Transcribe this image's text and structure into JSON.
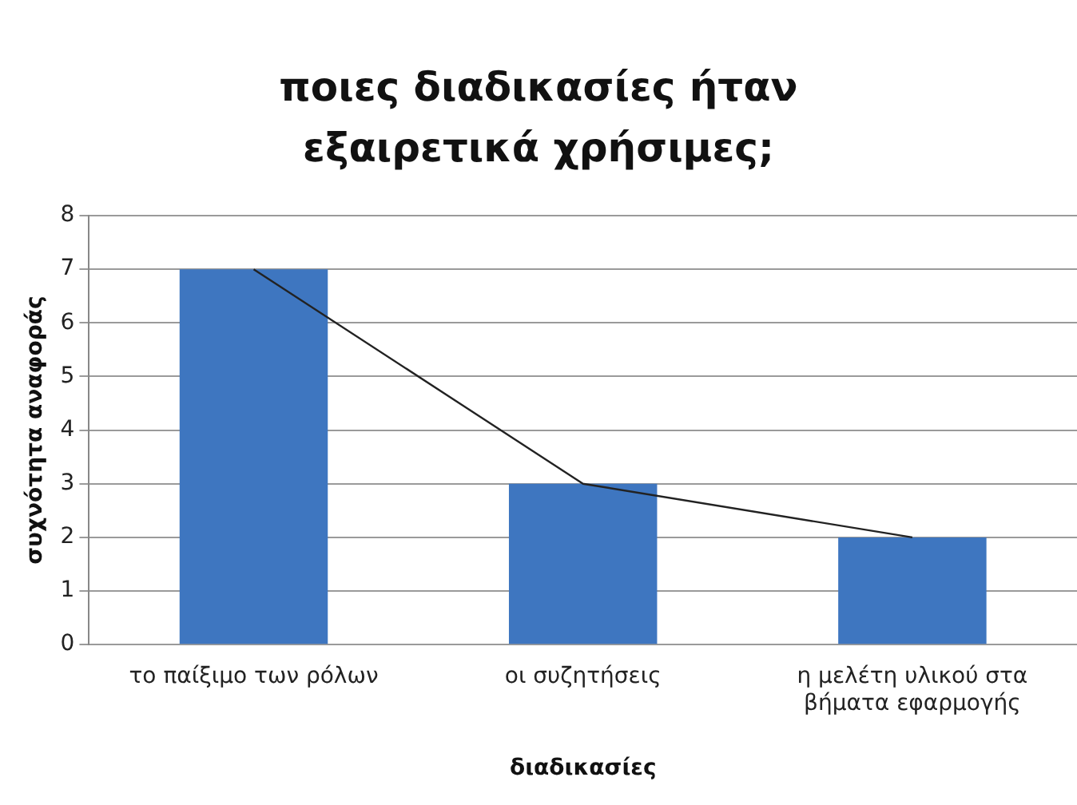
{
  "chart_data": {
    "type": "bar",
    "title": "ποιες διαδικασίες ήταν εξαιρετικά χρήσιμες;",
    "xlabel": "διαδικασίες",
    "ylabel": "συχνότητα αναφοράς",
    "categories": [
      "το παίξιμο των ρόλων",
      "οι συζητήσεις",
      "η μελέτη υλικού στα βήματα εφαρμογής"
    ],
    "series": [
      {
        "color": "#3e76c0",
        "values": [
          7,
          3,
          2
        ]
      },
      {
        "type": "line",
        "color": "#222222",
        "values": [
          7,
          3,
          2
        ]
      }
    ],
    "ylim": [
      0,
      8
    ],
    "yticks": [
      0,
      1,
      2,
      3,
      4,
      5,
      6,
      7,
      8
    ],
    "grid": "y",
    "legend": false,
    "marker": "none",
    "line_style": "solid"
  }
}
